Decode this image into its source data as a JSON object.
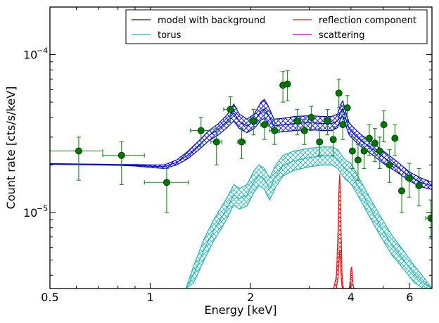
{
  "chart_data": {
    "type": "scatter",
    "xlabel": "Energy [keV]",
    "ylabel": "Count rate [cts/s/keV]",
    "xscale": "log",
    "yscale": "log",
    "xlim": [
      0.5,
      7.0
    ],
    "ylim": [
      3.3e-06,
      0.0002
    ],
    "x_ticks": [
      {
        "value": 0.5,
        "label": "0.5"
      },
      {
        "value": 1,
        "label": "1"
      },
      {
        "value": 2,
        "label": "2"
      },
      {
        "value": 4,
        "label": "4"
      },
      {
        "value": 6,
        "label": "6"
      }
    ],
    "y_ticks": [
      {
        "value": 1e-05,
        "base": "10",
        "exp": "−5"
      },
      {
        "value": 0.0001,
        "base": "10",
        "exp": "−4"
      }
    ],
    "grid": false,
    "legend_position": "top-right",
    "legend": {
      "col1": [
        {
          "label": "model with background",
          "color": "#0000ee"
        },
        {
          "label": "torus",
          "color": "#20b8b8"
        }
      ],
      "col2": [
        {
          "label": "reflection component",
          "color": "#ee1111"
        },
        {
          "label": "scattering",
          "color": "#c000c0"
        }
      ]
    },
    "colors": {
      "data": "#007700",
      "data_edge": "#004400",
      "errorbars": "#1a8a1a",
      "model": "#0000ee",
      "torus": "#20b8b8",
      "reflection": "#ee1111",
      "scattering": "#c000c0"
    },
    "data_points": [
      {
        "x": 0.61,
        "y": 2.45e-05,
        "xerr": [
          0.5,
          0.72
        ],
        "yerr": [
          1.6e-05,
          3e-05
        ]
      },
      {
        "x": 0.82,
        "y": 2.3e-05,
        "xerr": [
          0.72,
          0.96
        ],
        "yerr": [
          1.5e-05,
          2.8e-05
        ]
      },
      {
        "x": 1.12,
        "y": 1.55e-05,
        "xerr": [
          0.96,
          1.3
        ],
        "yerr": [
          1e-05,
          1.9e-05
        ]
      },
      {
        "x": 1.42,
        "y": 3.3e-05,
        "xerr": [
          1.32,
          1.52
        ],
        "yerr": [
          2.6e-05,
          4e-05
        ]
      },
      {
        "x": 1.58,
        "y": 2.8e-05,
        "xerr": [
          1.52,
          1.64
        ],
        "yerr": [
          2e-05,
          3.4e-05
        ]
      },
      {
        "x": 1.74,
        "y": 4.5e-05,
        "xerr": [
          1.66,
          1.82
        ],
        "yerr": [
          3.7e-05,
          5.4e-05
        ]
      },
      {
        "x": 1.88,
        "y": 2.8e-05,
        "xerr": [
          1.83,
          1.93
        ],
        "yerr": [
          2.2e-05,
          3.4e-05
        ]
      },
      {
        "x": 2.04,
        "y": 3.8e-05,
        "xerr": [
          1.98,
          2.1
        ],
        "yerr": [
          3.1e-05,
          4.5e-05
        ]
      },
      {
        "x": 2.2,
        "y": 3.6e-05,
        "xerr": [
          2.14,
          2.26
        ],
        "yerr": [
          2.9e-05,
          4.3e-05
        ]
      },
      {
        "x": 2.36,
        "y": 3.3e-05,
        "xerr": [
          2.28,
          2.44
        ],
        "yerr": [
          2.7e-05,
          3.9e-05
        ]
      },
      {
        "x": 2.5,
        "y": 6.4e-05,
        "xerr": [
          2.46,
          2.54
        ],
        "yerr": [
          5e-05,
          7.8e-05
        ]
      },
      {
        "x": 2.58,
        "y": 6.5e-05,
        "xerr": [
          2.55,
          2.62
        ],
        "yerr": [
          5.1e-05,
          7.9e-05
        ]
      },
      {
        "x": 2.76,
        "y": 3.8e-05,
        "xerr": [
          2.7,
          2.83
        ],
        "yerr": [
          3.1e-05,
          4.5e-05
        ]
      },
      {
        "x": 2.9,
        "y": 3.3e-05,
        "xerr": [
          2.84,
          2.96
        ],
        "yerr": [
          2.7e-05,
          3.9e-05
        ]
      },
      {
        "x": 3.04,
        "y": 4e-05,
        "xerr": [
          2.98,
          3.1
        ],
        "yerr": [
          3.3e-05,
          4.7e-05
        ]
      },
      {
        "x": 3.22,
        "y": 2.8e-05,
        "xerr": [
          3.16,
          3.28
        ],
        "yerr": [
          2.3e-05,
          3.4e-05
        ]
      },
      {
        "x": 3.4,
        "y": 3.8e-05,
        "xerr": [
          3.33,
          3.47
        ],
        "yerr": [
          3.1e-05,
          4.5e-05
        ]
      },
      {
        "x": 3.54,
        "y": 2.9e-05,
        "xerr": [
          3.49,
          3.6
        ],
        "yerr": [
          2.3e-05,
          3.5e-05
        ]
      },
      {
        "x": 3.68,
        "y": 5.7e-05,
        "xerr": [
          3.64,
          3.72
        ],
        "yerr": [
          4.6e-05,
          7e-05
        ]
      },
      {
        "x": 3.78,
        "y": 3.6e-05,
        "xerr": [
          3.74,
          3.82
        ],
        "yerr": [
          2.9e-05,
          4.3e-05
        ]
      },
      {
        "x": 3.9,
        "y": 4.6e-05,
        "xerr": [
          3.85,
          3.95
        ],
        "yerr": [
          3.7e-05,
          5.5e-05
        ]
      },
      {
        "x": 4.04,
        "y": 2.45e-05,
        "xerr": [
          3.98,
          4.1
        ],
        "yerr": [
          1.9e-05,
          3e-05
        ]
      },
      {
        "x": 4.2,
        "y": 2.15e-05,
        "xerr": [
          4.13,
          4.27
        ],
        "yerr": [
          1.6e-05,
          2.7e-05
        ]
      },
      {
        "x": 4.38,
        "y": 2.45e-05,
        "xerr": [
          4.3,
          4.46
        ],
        "yerr": [
          1.9e-05,
          3e-05
        ]
      },
      {
        "x": 4.54,
        "y": 2.95e-05,
        "xerr": [
          4.47,
          4.61
        ],
        "yerr": [
          2.3e-05,
          3.6e-05
        ]
      },
      {
        "x": 4.72,
        "y": 2.75e-05,
        "xerr": [
          4.64,
          4.8
        ],
        "yerr": [
          2.1e-05,
          3.4e-05
        ]
      },
      {
        "x": 4.88,
        "y": 2.45e-05,
        "xerr": [
          4.81,
          4.95
        ],
        "yerr": [
          1.9e-05,
          3e-05
        ]
      },
      {
        "x": 5.02,
        "y": 3.6e-05,
        "xerr": [
          4.96,
          5.08
        ],
        "yerr": [
          2.8e-05,
          4.4e-05
        ]
      },
      {
        "x": 5.22,
        "y": 2e-05,
        "xerr": [
          5.12,
          5.32
        ],
        "yerr": [
          1.55e-05,
          2.5e-05
        ]
      },
      {
        "x": 5.42,
        "y": 2.95e-05,
        "xerr": [
          5.34,
          5.5
        ],
        "yerr": [
          2.3e-05,
          3.6e-05
        ]
      },
      {
        "x": 5.68,
        "y": 1.37e-05,
        "xerr": [
          5.58,
          5.78
        ],
        "yerr": [
          1e-05,
          1.75e-05
        ]
      },
      {
        "x": 5.98,
        "y": 1.65e-05,
        "xerr": [
          5.84,
          6.12
        ],
        "yerr": [
          1.25e-05,
          2.05e-05
        ]
      },
      {
        "x": 6.4,
        "y": 1.48e-05,
        "xerr": [
          6.26,
          6.54
        ],
        "yerr": [
          1.1e-05,
          1.9e-05
        ]
      },
      {
        "x": 6.95,
        "y": 9.2e-06,
        "xerr": [
          6.7,
          7.0
        ],
        "yerr": [
          6.8e-06,
          1.2e-05
        ]
      }
    ],
    "series": [
      {
        "key": "model",
        "x": [
          0.5,
          0.6,
          0.7,
          0.8,
          0.9,
          1.0,
          1.1,
          1.2,
          1.3,
          1.4,
          1.5,
          1.6,
          1.7,
          1.78,
          1.85,
          1.95,
          2.05,
          2.15,
          2.2,
          2.25,
          2.35,
          2.5,
          2.7,
          3.0,
          3.3,
          3.5,
          3.65,
          3.72,
          3.78,
          3.85,
          3.95,
          4.1,
          4.3,
          4.6,
          5.0,
          5.5,
          6.0,
          6.5,
          7.0
        ],
        "upper": [
          2.04e-05,
          2.03e-05,
          2.02e-05,
          2.01e-05,
          2.01e-05,
          2e-05,
          2e-05,
          2.15e-05,
          2.45e-05,
          2.85e-05,
          3.3e-05,
          3.65e-05,
          4.15e-05,
          4.85e-05,
          4.2e-05,
          3.9e-05,
          4.2e-05,
          5e-05,
          5.2e-05,
          4.8e-05,
          3.9e-05,
          3.95e-05,
          4.05e-05,
          4.1e-05,
          4.05e-05,
          4.05e-05,
          4.2e-05,
          4.8e-05,
          5.1e-05,
          4.4e-05,
          3.7e-05,
          3.4e-05,
          3.1e-05,
          2.8e-05,
          2.45e-05,
          2.1e-05,
          1.8e-05,
          1.65e-05,
          1.55e-05
        ],
        "lower": [
          2.02e-05,
          2.01e-05,
          2e-05,
          1.99e-05,
          1.97e-05,
          1.93e-05,
          1.9e-05,
          2e-05,
          2.2e-05,
          2.5e-05,
          2.85e-05,
          3.1e-05,
          3.45e-05,
          3.8e-05,
          3.4e-05,
          3.2e-05,
          3.4e-05,
          3.85e-05,
          3.95e-05,
          3.7e-05,
          3.2e-05,
          3.25e-05,
          3.3e-05,
          3.35e-05,
          3.3e-05,
          3.3e-05,
          3.45e-05,
          3.9e-05,
          4.1e-05,
          3.6e-05,
          3.1e-05,
          2.85e-05,
          2.6e-05,
          2.35e-05,
          2.05e-05,
          1.8e-05,
          1.58e-05,
          1.45e-05,
          1.4e-05
        ]
      },
      {
        "key": "torus",
        "x": [
          1.28,
          1.35,
          1.45,
          1.55,
          1.65,
          1.72,
          1.78,
          1.85,
          1.95,
          2.05,
          2.12,
          2.2,
          2.28,
          2.38,
          2.5,
          2.7,
          3.0,
          3.3,
          3.5,
          3.65,
          3.75,
          3.85,
          4.0,
          4.2,
          4.5,
          4.9,
          5.3,
          5.8,
          6.2,
          6.6,
          7.0
        ],
        "upper": [
          3.3e-06,
          4.6e-06,
          6.8e-06,
          9e-06,
          1.12e-05,
          1.3e-05,
          1.5e-05,
          1.42e-05,
          1.5e-05,
          1.85e-05,
          2e-05,
          1.9e-05,
          1.65e-05,
          2e-05,
          2.3e-05,
          2.45e-05,
          2.55e-05,
          2.6e-05,
          2.6e-05,
          2.5e-05,
          2.3e-05,
          2.15e-05,
          2.05e-05,
          1.7e-05,
          1.3e-05,
          9.5e-06,
          7.2e-06,
          5.6e-06,
          4.6e-06,
          3.9e-06,
          3.3e-06
        ],
        "lower": [
          3.3e-06,
          3.6e-06,
          5e-06,
          6.6e-06,
          8.2e-06,
          9.6e-06,
          1.12e-05,
          1.05e-05,
          1.1e-05,
          1.35e-05,
          1.48e-05,
          1.4e-05,
          1.2e-05,
          1.45e-05,
          1.7e-05,
          1.85e-05,
          1.95e-05,
          2e-05,
          2e-05,
          1.9e-05,
          1.75e-05,
          1.62e-05,
          1.52e-05,
          1.28e-05,
          9.8e-06,
          7.1e-06,
          5.4e-06,
          4.3e-06,
          3.6e-06,
          3.3e-06,
          3.3e-06
        ]
      },
      {
        "key": "reflection",
        "x": [
          3.45,
          3.55,
          3.62,
          3.66,
          3.68,
          3.7,
          3.72,
          3.74,
          3.76,
          3.78,
          3.8,
          3.82,
          3.84,
          3.86,
          3.88,
          3.9,
          3.92,
          3.95,
          3.98,
          4.0,
          4.02,
          4.04,
          4.06,
          4.08,
          4.1,
          4.15
        ],
        "upper": [
          3.3e-06,
          3.3e-06,
          4e-06,
          8e-06,
          1.35e-05,
          1.75e-05,
          1.35e-05,
          7e-06,
          4.2e-06,
          3.5e-06,
          3.3e-06,
          3.3e-06,
          3.3e-06,
          3.3e-06,
          3.3e-06,
          3.3e-06,
          3.3e-06,
          3.3e-06,
          3.7e-06,
          4.4e-06,
          4.5e-06,
          4e-06,
          3.5e-06,
          3.3e-06,
          3.3e-06,
          3.3e-06
        ],
        "lower": [
          3.3e-06,
          3.3e-06,
          3.3e-06,
          3.9e-06,
          4.8e-06,
          5.8e-06,
          4.8e-06,
          3.9e-06,
          3.4e-06,
          3.3e-06,
          3.3e-06,
          3.3e-06,
          3.3e-06,
          3.3e-06,
          3.3e-06,
          3.3e-06,
          3.3e-06,
          3.3e-06,
          3.3e-06,
          3.3e-06,
          3.3e-06,
          3.3e-06,
          3.3e-06,
          3.3e-06,
          3.3e-06,
          3.3e-06
        ]
      }
    ]
  }
}
